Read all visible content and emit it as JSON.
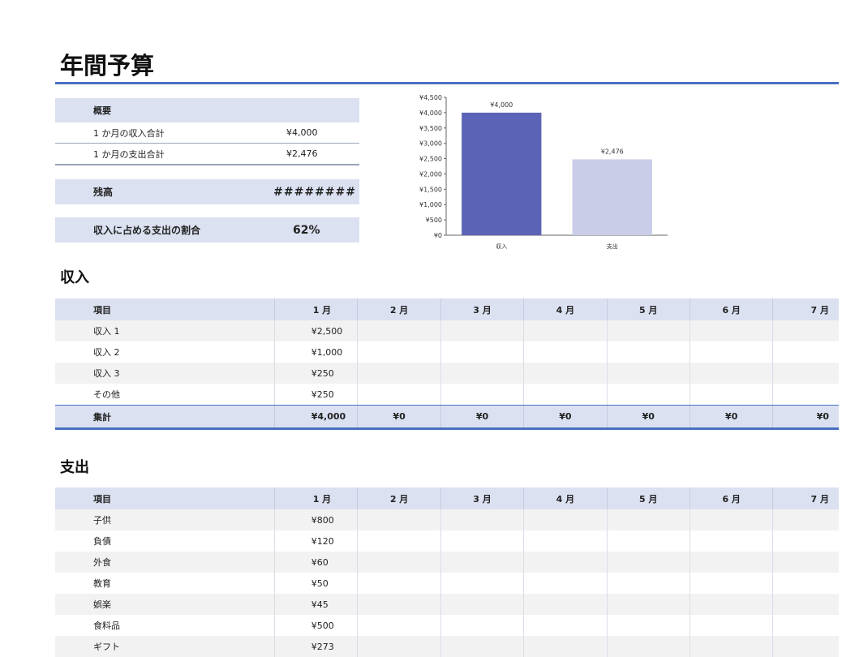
{
  "title": "年間予算",
  "summary": {
    "heading": "概要",
    "rows": [
      {
        "label": "1 か月の収入合計",
        "value": "¥4,000"
      },
      {
        "label": "1 か月の支出合計",
        "value": "¥2,476"
      }
    ],
    "balance": {
      "label": "残高",
      "value": "########"
    },
    "ratio": {
      "label": "収入に占める支出の割合",
      "value": "62%"
    }
  },
  "chart_data": {
    "type": "bar",
    "categories": [
      "収入",
      "支出"
    ],
    "values": [
      4000,
      2476
    ],
    "data_labels": [
      "¥4,000",
      "¥2,476"
    ],
    "colors": [
      "#5b63b7",
      "#c9cde8"
    ],
    "ylim": [
      0,
      4500
    ],
    "y_ticks": [
      "¥0",
      "¥500",
      "¥1,000",
      "¥1,500",
      "¥2,000",
      "¥2,500",
      "¥3,000",
      "¥3,500",
      "¥4,000",
      "¥4,500"
    ],
    "grid": false,
    "legend": "none"
  },
  "income": {
    "title": "収入",
    "headers": [
      "項目",
      "1 月",
      "2 月",
      "3 月",
      "4 月",
      "5 月",
      "6 月",
      "7 月"
    ],
    "rows": [
      {
        "item": "収入 1",
        "m1": "¥2,500"
      },
      {
        "item": "収入 2",
        "m1": "¥1,000"
      },
      {
        "item": "収入 3",
        "m1": "¥250"
      },
      {
        "item": "その他",
        "m1": "¥250"
      }
    ],
    "total": {
      "label": "集計",
      "values": [
        "¥4,000",
        "¥0",
        "¥0",
        "¥0",
        "¥0",
        "¥0",
        "¥0"
      ]
    }
  },
  "expense": {
    "title": "支出",
    "headers": [
      "項目",
      "1 月",
      "2 月",
      "3 月",
      "4 月",
      "5 月",
      "6 月",
      "7 月"
    ],
    "rows": [
      {
        "item": "子供",
        "m1": "¥800"
      },
      {
        "item": "負債",
        "m1": "¥120"
      },
      {
        "item": "外食",
        "m1": "¥60"
      },
      {
        "item": "教育",
        "m1": "¥50"
      },
      {
        "item": "娯楽",
        "m1": "¥45"
      },
      {
        "item": "食料品",
        "m1": "¥500"
      },
      {
        "item": "ギフト",
        "m1": "¥273"
      }
    ]
  }
}
